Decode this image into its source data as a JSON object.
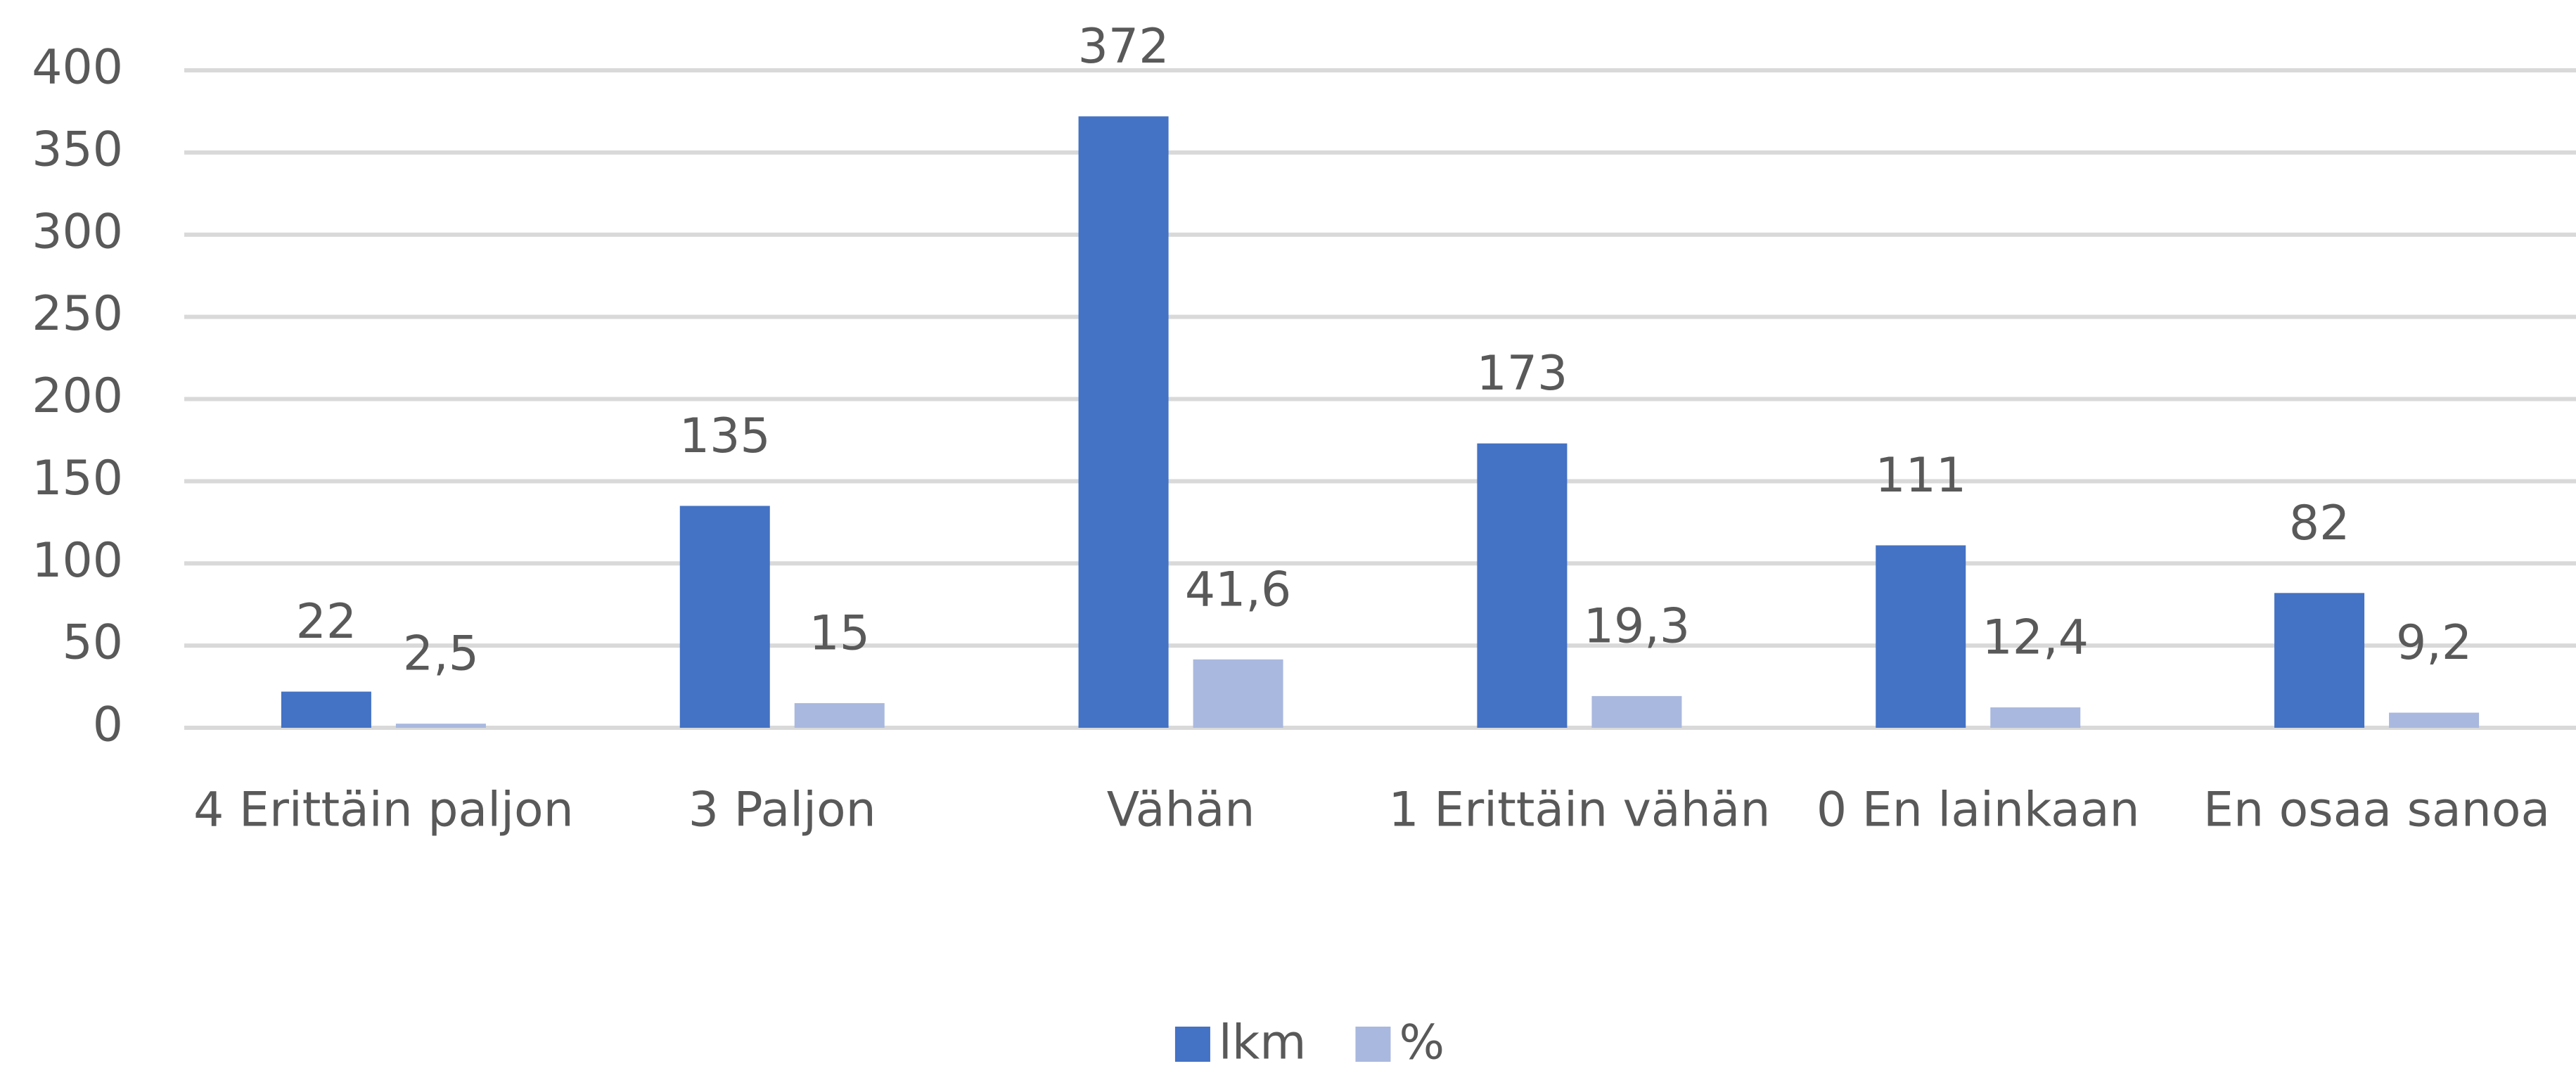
{
  "chart_data": {
    "type": "bar",
    "categories": [
      "4 Erittäin paljon",
      "3 Paljon",
      "Vähän",
      "1 Erittäin vähän",
      "0 En lainkaan",
      "En osaa sanoa"
    ],
    "series": [
      {
        "name": "lkm",
        "color": "#4472c4",
        "values": [
          22,
          135,
          372,
          173,
          111,
          82
        ]
      },
      {
        "name": "%",
        "color": "#a9b8de",
        "values": [
          2.5,
          15,
          41.6,
          19.3,
          12.4,
          9.2
        ],
        "value_labels": [
          "2,5",
          "15",
          "41,6",
          "19,3",
          "12,4",
          "9,2"
        ]
      }
    ],
    "ylim": [
      0,
      400
    ],
    "yticks": [
      0,
      50,
      100,
      150,
      200,
      250,
      300,
      350,
      400
    ],
    "grid": true,
    "legend": "bottom"
  }
}
